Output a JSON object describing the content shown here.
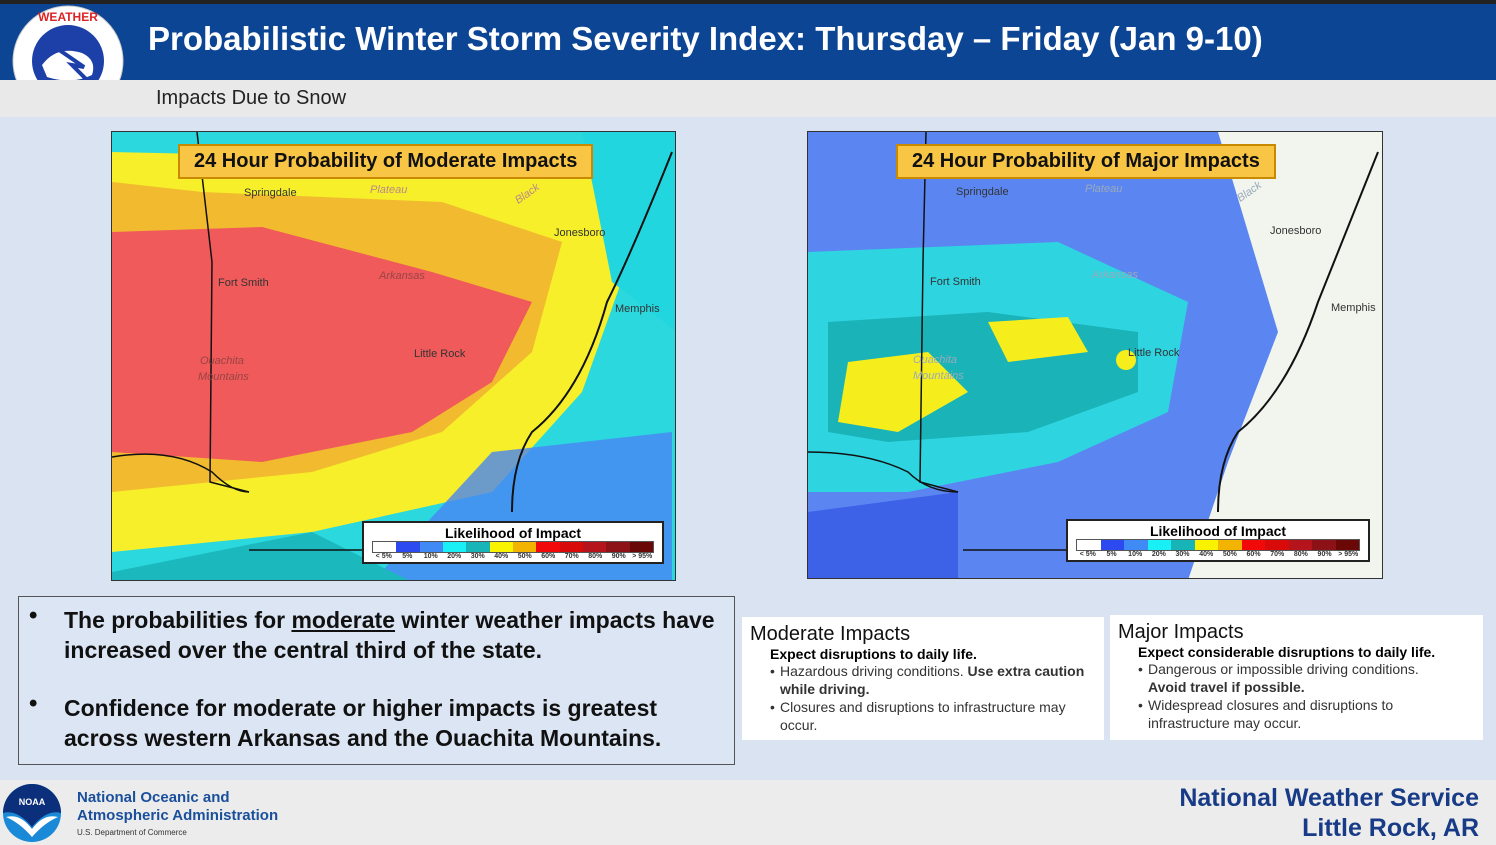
{
  "header": {
    "title": "Probabilistic Winter Storm Severity Index: Thursday – Friday (Jan 9-10)",
    "subtitle": "Impacts Due to Snow",
    "logo_text": "NATIONAL WEATHER SERVICE"
  },
  "maps": [
    {
      "title": "24 Hour Probability of Moderate Impacts"
    },
    {
      "title": "24 Hour Probability of Major Impacts"
    }
  ],
  "map_labels": {
    "springdale": "Springdale",
    "plateau": "Plateau",
    "black": "Black",
    "jonesboro": "Jonesboro",
    "fort_smith": "Fort Smith",
    "arkansas": "Arkansas",
    "memphis": "Memphis",
    "ouachita": "Ouachita",
    "mountains": "Mountains",
    "little_rock": "Little Rock"
  },
  "legend": {
    "title": "Likelihood of Impact",
    "labels": [
      "< 5%",
      "5%",
      "10%",
      "20%",
      "30%",
      "40%",
      "50%",
      "60%",
      "70%",
      "80%",
      "90%",
      "> 95%"
    ],
    "colors": [
      "#ffffff",
      "#2d49f0",
      "#3f8af5",
      "#18f0f5",
      "#17b4b8",
      "#f9f200",
      "#f2b400",
      "#f20a0a",
      "#d90a0a",
      "#b5141c",
      "#8c1218",
      "#6a0808"
    ]
  },
  "bullets": [
    "The probabilities for moderate winter weather impacts have increased over the central third of the state.",
    "Confidence for moderate or higher impacts is greatest across western Arkansas and the Ouachita Mountains."
  ],
  "bullet_parts": {
    "pre": "The probabilities for ",
    "u": "moderate",
    "post": " winter weather impacts have increased over the central third of the state."
  },
  "moderate": {
    "title": "Moderate Impacts",
    "lead": "Expect disruptions to daily life.",
    "item1_a": "Hazardous driving conditions. ",
    "item1_b": "Use extra caution while driving.",
    "item2": "Closures and disruptions to infrastructure may occur."
  },
  "major": {
    "title": "Major Impacts",
    "lead": "Expect considerable disruptions to daily life.",
    "item1_a": "Dangerous or impossible driving conditions.",
    "item1_b": "Avoid travel if possible.",
    "item2": "Widespread closures and disruptions to infrastructure may occur."
  },
  "footer": {
    "org_line1": "National Oceanic and",
    "org_line2": "Atmospheric Administration",
    "dept": "U.S. Department of Commerce",
    "noaa_logo": "NOAA",
    "nws_line1": "National Weather Service",
    "nws_line2": "Little Rock, AR"
  }
}
